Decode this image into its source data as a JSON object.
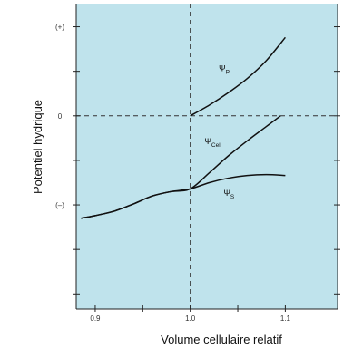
{
  "chart_data": {
    "type": "line",
    "title": "",
    "xlabel": "Volume cellulaire relatif",
    "ylabel": "Potentiel hydrique",
    "xlim": [
      0.88,
      1.155
    ],
    "ylim": [
      -2.17,
      1.26
    ],
    "x_ticks": [
      {
        "value": 0.9,
        "label": "0.9"
      },
      {
        "value": 1.0,
        "label": "1.0"
      },
      {
        "value": 1.1,
        "label": "1.1"
      }
    ],
    "y_ticks": [
      {
        "value": 1.0,
        "label": "(+)"
      },
      {
        "value": 0.0,
        "label": "0"
      },
      {
        "value": -1.0,
        "label": "(–)"
      }
    ],
    "reference_lines": {
      "x": 1.0,
      "y": 0.0,
      "style": "dashed"
    },
    "grid": false,
    "background": "#bfe3ec",
    "series": [
      {
        "name": "Ψ",
        "subscript": "P",
        "x": [
          1.0,
          1.02,
          1.04,
          1.06,
          1.08,
          1.1
        ],
        "y": [
          0.0,
          0.12,
          0.26,
          0.42,
          0.62,
          0.88
        ]
      },
      {
        "name": "Ψ",
        "subscript": "Cell",
        "x": [
          0.885,
          0.9,
          0.92,
          0.94,
          0.96,
          0.98,
          1.0,
          1.02,
          1.04,
          1.06,
          1.08,
          1.095
        ],
        "y": [
          -1.15,
          -1.12,
          -1.07,
          -0.99,
          -0.9,
          -0.85,
          -0.82,
          -0.64,
          -0.45,
          -0.28,
          -0.12,
          0.0
        ]
      },
      {
        "name": "Ψ",
        "subscript": "S",
        "x": [
          0.885,
          0.9,
          0.92,
          0.94,
          0.96,
          0.98,
          1.0,
          1.02,
          1.04,
          1.06,
          1.08,
          1.1
        ],
        "y": [
          -1.15,
          -1.12,
          -1.07,
          -0.99,
          -0.9,
          -0.85,
          -0.82,
          -0.75,
          -0.7,
          -0.67,
          -0.66,
          -0.67
        ]
      }
    ]
  }
}
